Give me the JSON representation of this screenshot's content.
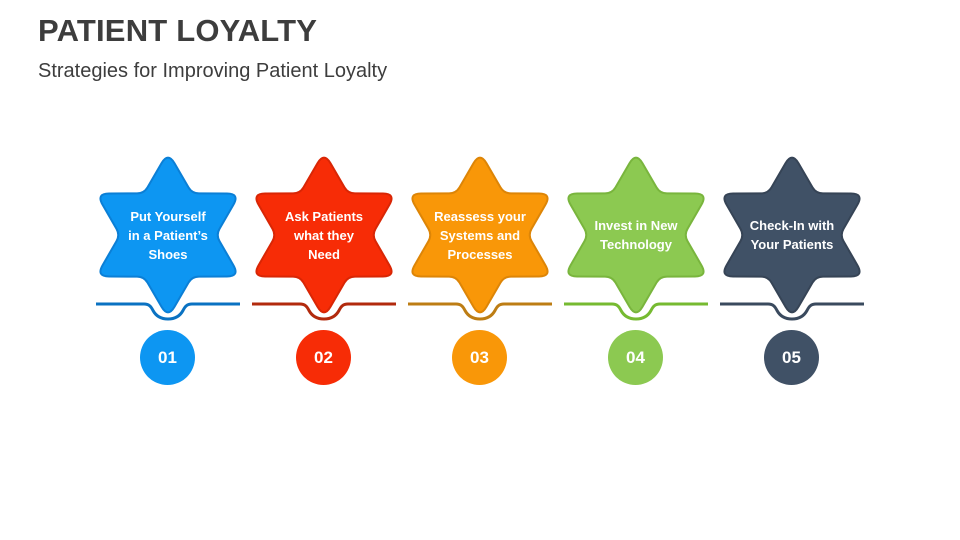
{
  "slide": {
    "title": "PATIENT LOYALTY",
    "subtitle": "Strategies for Improving Patient Loyalty",
    "title_color": "#3d3d3d",
    "background": "#ffffff"
  },
  "items": [
    {
      "number": "01",
      "label": "Put Yourself in a Patient’s Shoes",
      "label_lines": [
        "Put Yourself",
        "in a Patient’s",
        "Shoes"
      ],
      "colors": {
        "fill": "#0d96f2",
        "stroke": "#0b7fd6",
        "line": "#0a72c2"
      }
    },
    {
      "number": "02",
      "label": "Ask Patients what they Need",
      "label_lines": [
        "Ask Patients",
        "what they",
        "Need"
      ],
      "colors": {
        "fill": "#f72c06",
        "stroke": "#d92605",
        "line": "#b22a0d"
      }
    },
    {
      "number": "03",
      "label": "Reassess your Systems and Processes",
      "label_lines": [
        "Reassess your",
        "Systems and",
        "Processes"
      ],
      "colors": {
        "fill": "#f99708",
        "stroke": "#dd8507",
        "line": "#bd7d14"
      }
    },
    {
      "number": "04",
      "label": "Invest in New Technology",
      "label_lines": [
        "Invest in New",
        "Technology"
      ],
      "colors": {
        "fill": "#8cc951",
        "stroke": "#79b53d",
        "line": "#76ba31"
      }
    },
    {
      "number": "05",
      "label": "Check-In with Your Patients",
      "label_lines": [
        "Check-In with",
        "Your Patients"
      ],
      "colors": {
        "fill": "#405166",
        "stroke": "#364456",
        "line": "#3a4a5e"
      }
    }
  ]
}
